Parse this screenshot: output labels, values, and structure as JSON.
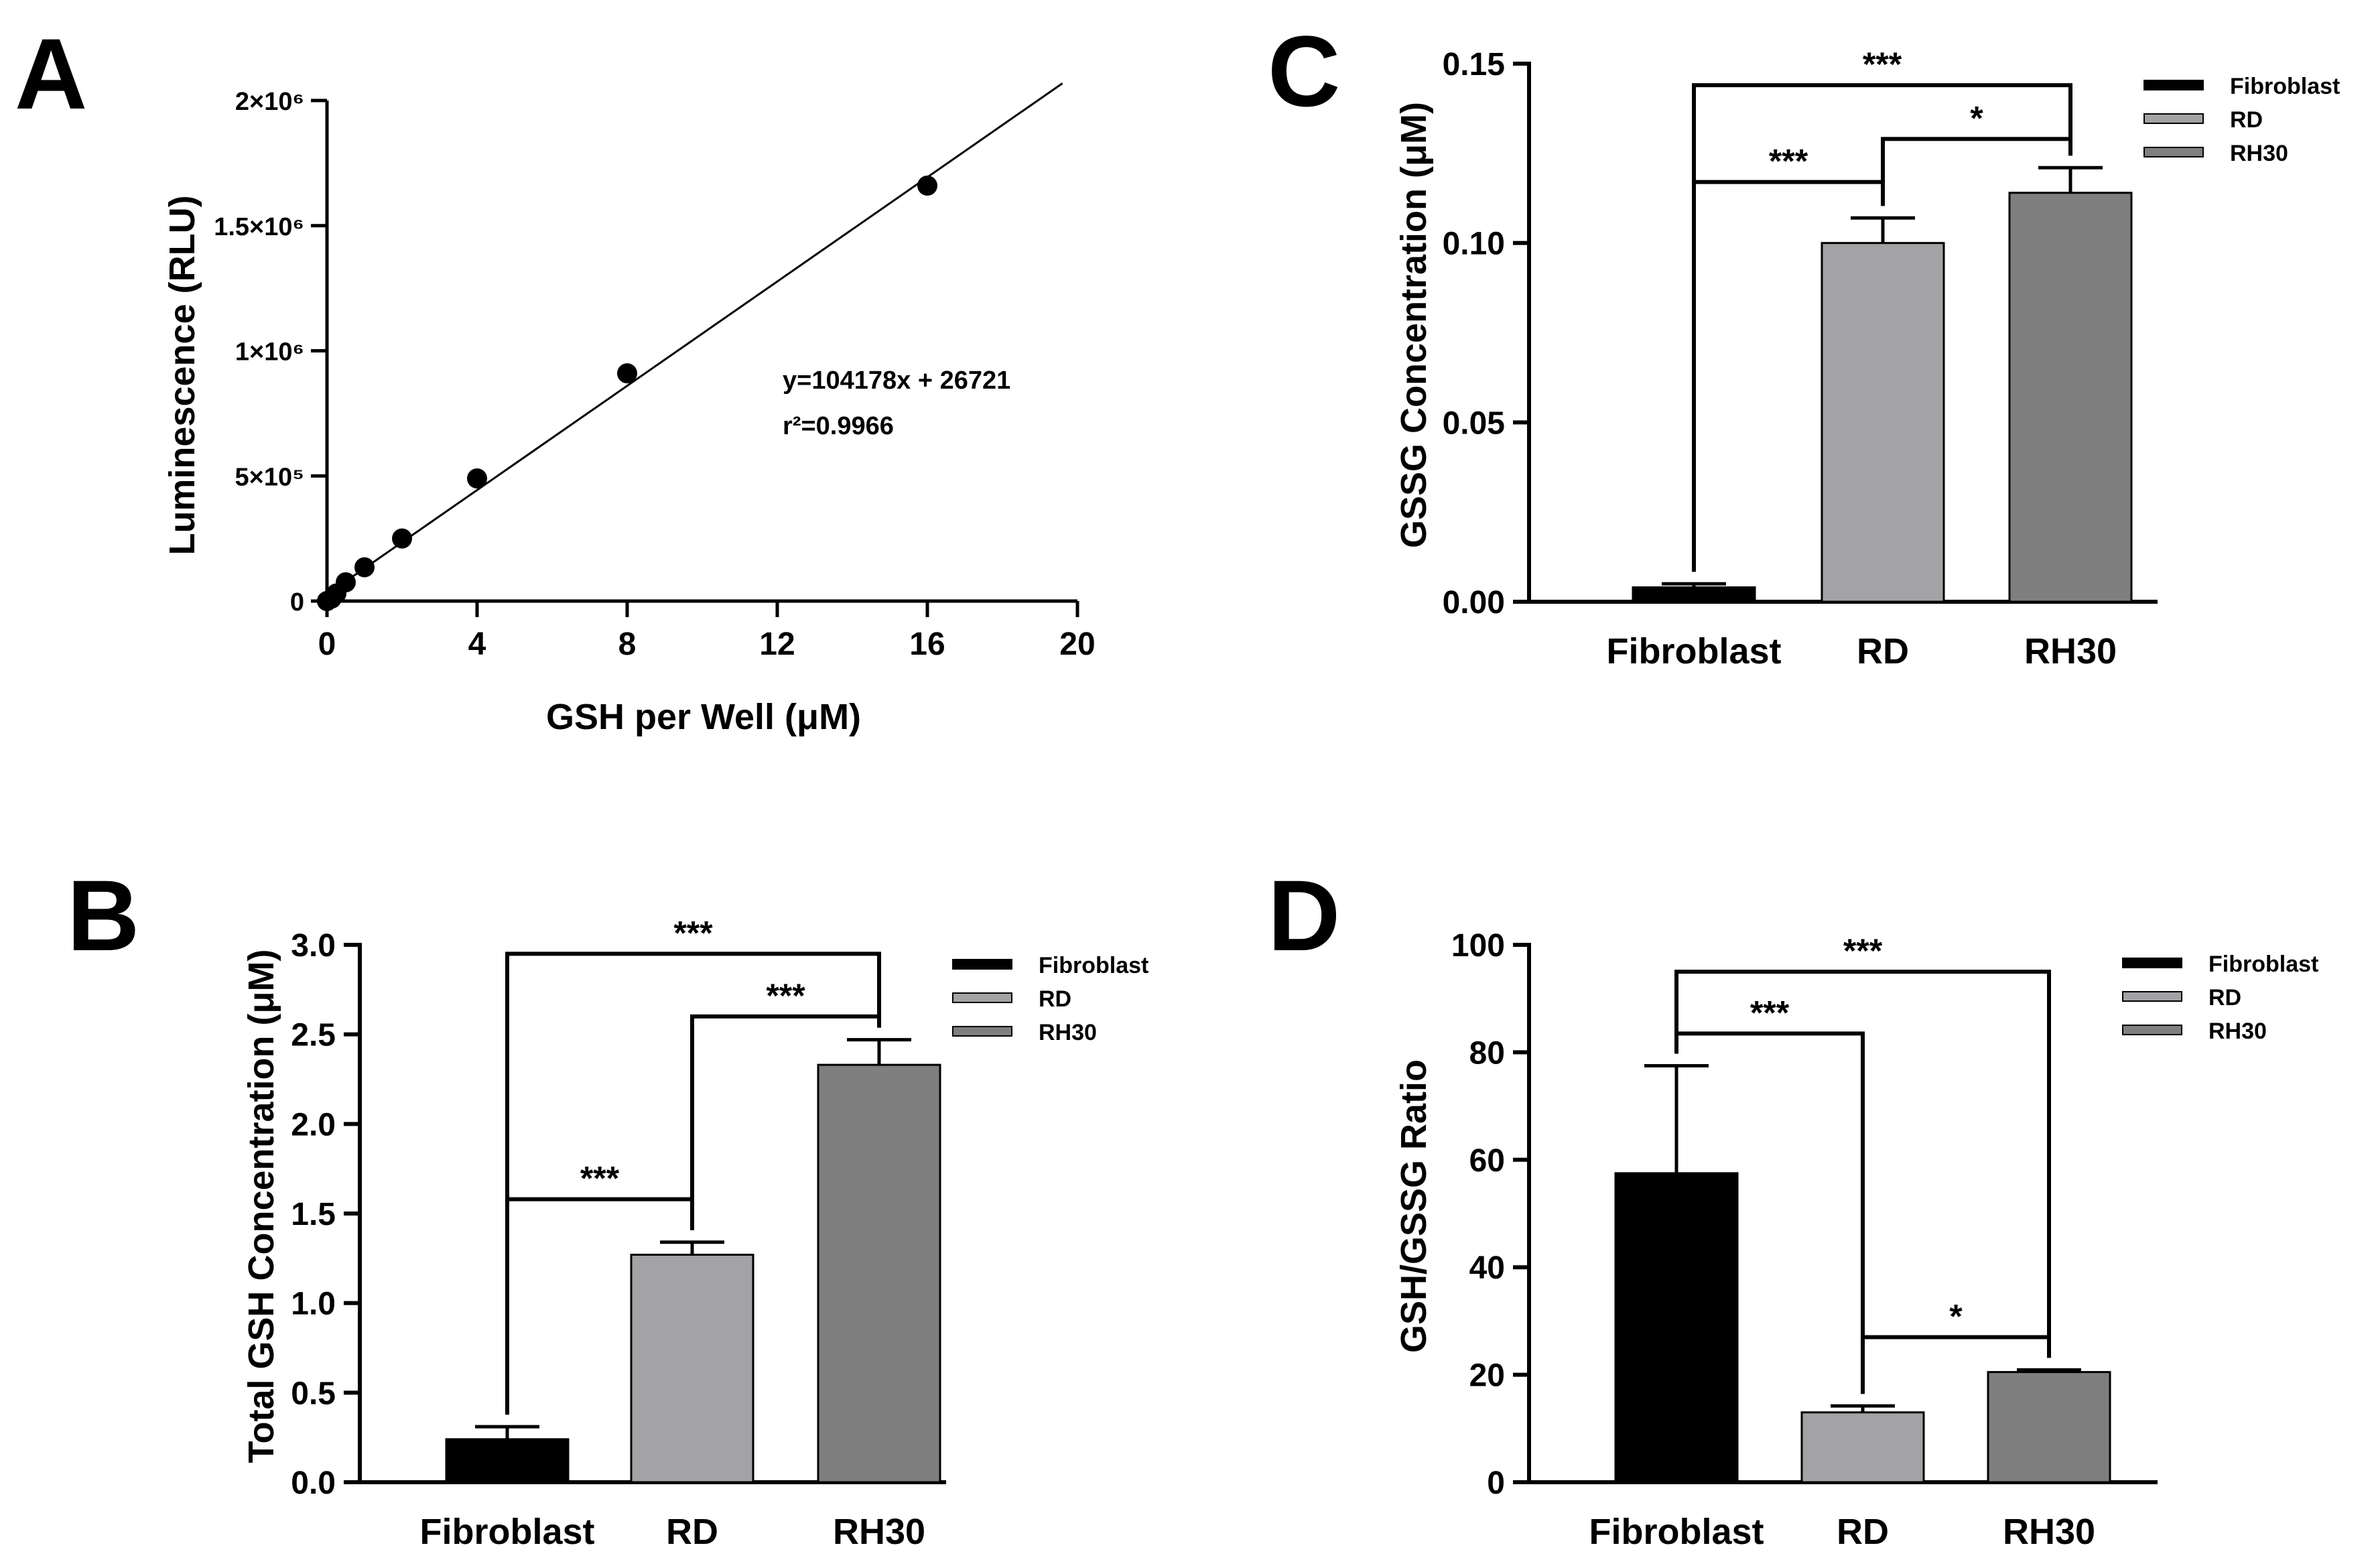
{
  "chart_data": [
    {
      "panel": "A",
      "type": "scatter",
      "xlabel": "GSH per Well (μM)",
      "ylabel": "Luminescence (RLU)",
      "xlim": [
        0,
        20
      ],
      "ylim": [
        0,
        2000000
      ],
      "xticks": [
        0,
        4,
        8,
        12,
        16,
        20
      ],
      "xtick_labels": [
        "0",
        "4",
        "8",
        "12",
        "16",
        "20"
      ],
      "yticks": [
        0,
        500000,
        1000000,
        1500000,
        2000000
      ],
      "ytick_labels": [
        "0",
        "5×10⁵",
        "1×10⁶",
        "1.5×10⁶",
        "2×10⁶"
      ],
      "x": [
        0,
        0.125,
        0.25,
        0.5,
        1,
        2,
        4,
        8,
        16
      ],
      "y": [
        0,
        10000,
        30000,
        75000,
        135000,
        250000,
        490000,
        910000,
        1660000
      ],
      "fit": {
        "slope": 104178,
        "intercept": 26721,
        "x_range": [
          0,
          19.6
        ]
      },
      "annotations": [
        "y=104178x + 26721",
        "r²=0.9966"
      ]
    },
    {
      "panel": "B",
      "type": "bar",
      "categories": [
        "Fibroblast",
        "RD",
        "RH30"
      ],
      "values": [
        0.24,
        1.27,
        2.33
      ],
      "errors": [
        0.07,
        0.07,
        0.14
      ],
      "colors": [
        "#000000",
        "#a3a3a6",
        "#7f7f7f"
      ],
      "ylabel": "Total GSH Concentration (μM)",
      "ylim": [
        0,
        3
      ],
      "yticks": [
        0,
        0.5,
        1,
        1.5,
        2,
        2.5,
        3
      ],
      "ytick_labels": [
        "0.0",
        "0.5",
        "1.0",
        "1.5",
        "2.0",
        "2.5",
        "3.0"
      ],
      "legend": [
        "Fibroblast",
        "RD",
        "RH30"
      ],
      "significance": [
        {
          "from": 0,
          "to": 1,
          "level": 1.58,
          "label": "***"
        },
        {
          "from": 1,
          "to": 2,
          "level": 2.6,
          "label": "***"
        },
        {
          "from": 0,
          "to": 2,
          "level": 2.95,
          "label": "***"
        }
      ]
    },
    {
      "panel": "C",
      "type": "bar",
      "categories": [
        "Fibroblast",
        "RD",
        "RH30"
      ],
      "values": [
        0.004,
        0.1,
        0.114
      ],
      "errors": [
        0.001,
        0.007,
        0.007
      ],
      "colors": [
        "#000000",
        "#a3a3a6",
        "#7f7f7f"
      ],
      "ylabel": "GSSG Concentration (μM)",
      "ylim": [
        0,
        0.15
      ],
      "yticks": [
        0,
        0.05,
        0.1,
        0.15
      ],
      "ytick_labels": [
        "0.00",
        "0.05",
        "0.10",
        "0.15"
      ],
      "legend": [
        "Fibroblast",
        "RD",
        "RH30"
      ],
      "significance": [
        {
          "from": 0,
          "to": 1,
          "level": 0.117,
          "label": "***"
        },
        {
          "from": 1,
          "to": 2,
          "level": 0.129,
          "label": "*"
        },
        {
          "from": 0,
          "to": 2,
          "level": 0.144,
          "label": "***"
        }
      ]
    },
    {
      "panel": "D",
      "type": "bar",
      "categories": [
        "Fibroblast",
        "RD",
        "RH30"
      ],
      "values": [
        57.5,
        13,
        20.5
      ],
      "errors": [
        20,
        1.2,
        0.4
      ],
      "colors": [
        "#000000",
        "#a3a3a6",
        "#7f7f7f"
      ],
      "ylabel": "GSH/GSSG Ratio",
      "ylim": [
        0,
        100
      ],
      "yticks": [
        0,
        20,
        40,
        60,
        80,
        100
      ],
      "ytick_labels": [
        "0",
        "20",
        "40",
        "60",
        "80",
        "100"
      ],
      "legend": [
        "Fibroblast",
        "RD",
        "RH30"
      ],
      "significance": [
        {
          "from": 0,
          "to": 1,
          "level": 83.5,
          "label": "***"
        },
        {
          "from": 1,
          "to": 2,
          "level": 27,
          "label": "*"
        },
        {
          "from": 0,
          "to": 2,
          "level": 95,
          "label": "***"
        }
      ]
    }
  ]
}
